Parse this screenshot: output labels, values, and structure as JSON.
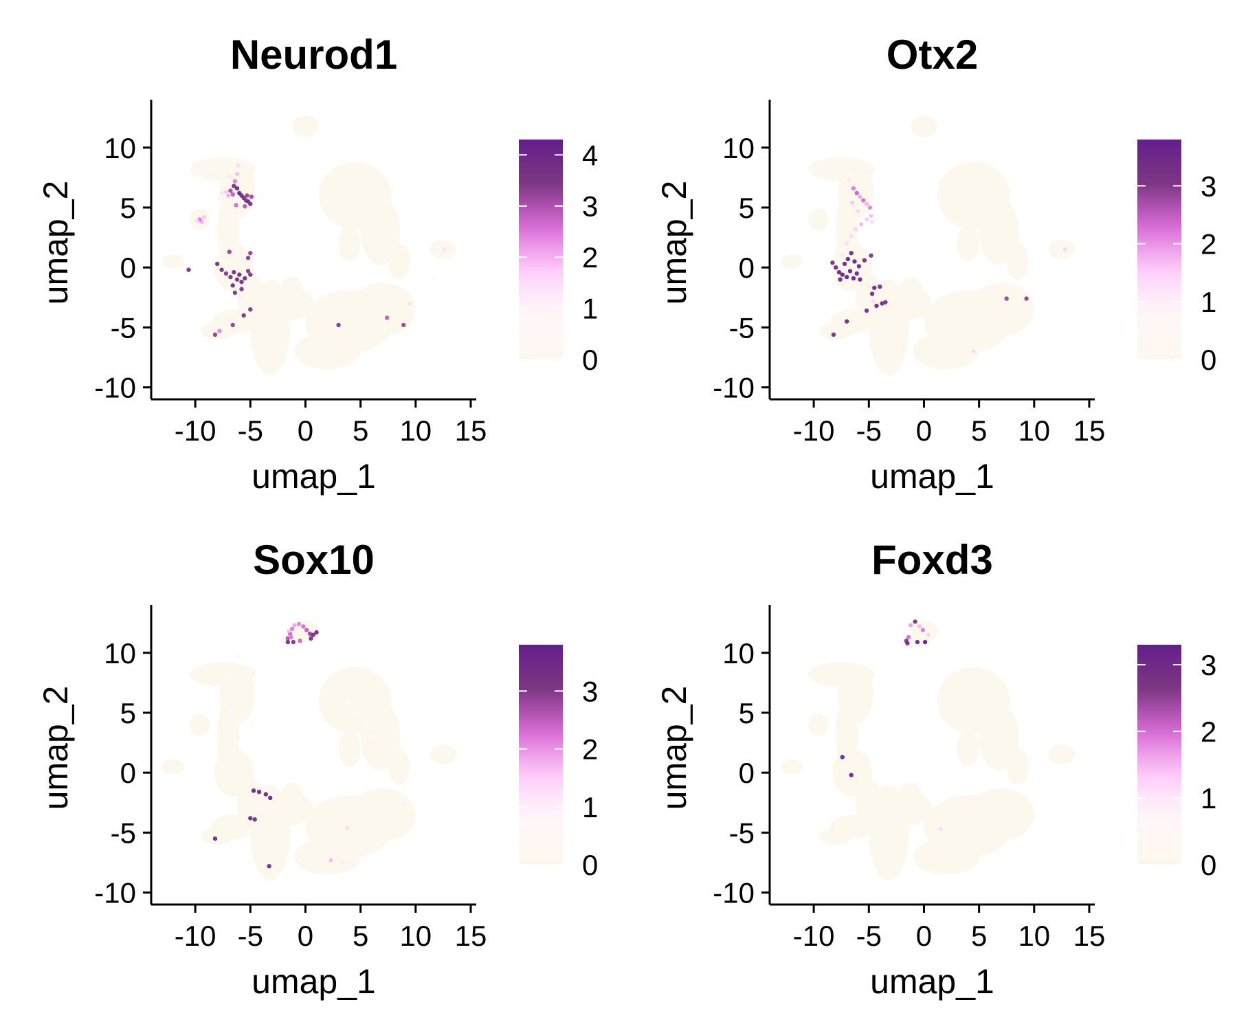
{
  "chart_data": [
    {
      "type": "scatter",
      "title": "Neurod1",
      "xlabel": "umap_1",
      "ylabel": "umap_2",
      "xlim": [
        -14,
        15.5
      ],
      "ylim": [
        -11,
        14
      ],
      "xticks": [
        -10,
        -5,
        0,
        5,
        10,
        15
      ],
      "yticks": [
        -10,
        -5,
        0,
        5,
        10
      ],
      "colorbar": {
        "min": 0,
        "max": 4.3,
        "ticks": [
          0,
          1,
          2,
          3,
          4
        ]
      },
      "points": [
        [
          -7,
          6,
          2.2
        ],
        [
          -6.8,
          6.4,
          3.0
        ],
        [
          -6.5,
          6.8,
          3.6
        ],
        [
          -6.2,
          6.6,
          3.8
        ],
        [
          -6,
          6.2,
          4.0
        ],
        [
          -5.8,
          6.0,
          3.9
        ],
        [
          -5.6,
          5.8,
          3.7
        ],
        [
          -5.4,
          5.6,
          3.5
        ],
        [
          -5.2,
          5.5,
          3.8
        ],
        [
          -5,
          5.3,
          3.6
        ],
        [
          -5.3,
          6.0,
          3.2
        ],
        [
          -6.6,
          6.1,
          2.8
        ],
        [
          -7.2,
          6.3,
          1.9
        ],
        [
          -7.6,
          6.2,
          1.5
        ],
        [
          -7.8,
          5.8,
          1.2
        ],
        [
          -6.4,
          7.2,
          2.4
        ],
        [
          -6.2,
          7.8,
          2.0
        ],
        [
          -6.1,
          8.5,
          1.7
        ],
        [
          -6.9,
          7.6,
          1.4
        ],
        [
          -7.4,
          8.8,
          0.9
        ],
        [
          -6.3,
          5.2,
          2.6
        ],
        [
          -5.5,
          5.1,
          2.9
        ],
        [
          -4.9,
          5.9,
          3.1
        ],
        [
          -9.6,
          4.0,
          2.5
        ],
        [
          -9.4,
          3.8,
          2.2
        ],
        [
          -9.2,
          4.2,
          2.0
        ],
        [
          -9.8,
          3.9,
          1.8
        ],
        [
          -8,
          0.3,
          3.5
        ],
        [
          -7.6,
          -0.2,
          3.6
        ],
        [
          -7.2,
          -0.5,
          3.4
        ],
        [
          -6.8,
          -0.8,
          3.6
        ],
        [
          -6.5,
          -0.4,
          3.7
        ],
        [
          -6.2,
          -1.0,
          3.5
        ],
        [
          -6,
          -0.6,
          3.8
        ],
        [
          -5.8,
          -1.2,
          3.6
        ],
        [
          -5.5,
          -0.9,
          3.7
        ],
        [
          -5.2,
          -0.3,
          3.4
        ],
        [
          -5,
          -0.6,
          3.5
        ],
        [
          -5.2,
          0.8,
          3.3
        ],
        [
          -5,
          1.2,
          3.2
        ],
        [
          -6.6,
          -1.5,
          3.6
        ],
        [
          -6.4,
          -2.1,
          3.4
        ],
        [
          -5.8,
          -1.8,
          3.5
        ],
        [
          -6.9,
          1.3,
          3.2
        ],
        [
          -10.6,
          -0.2,
          3.5
        ],
        [
          -5,
          -3.5,
          3.4
        ],
        [
          -5.6,
          -4.0,
          3.5
        ],
        [
          -6.6,
          -4.8,
          3.3
        ],
        [
          -8.2,
          -5.6,
          3.3
        ],
        [
          -7.8,
          -5.3,
          2.4
        ],
        [
          -7.0,
          -4.3,
          1.2
        ],
        [
          -6.0,
          -2.5,
          1.3
        ],
        [
          -8.0,
          3.0,
          0.8
        ],
        [
          -6.8,
          2.6,
          0.9
        ],
        [
          -8.6,
          8.2,
          0.7
        ],
        [
          3.0,
          -4.8,
          3.4
        ],
        [
          7.4,
          -4.2,
          2.8
        ],
        [
          8.9,
          -4.8,
          3.2
        ],
        [
          9.5,
          -3.0,
          1.5
        ],
        [
          1.0,
          -3.0,
          1.0
        ],
        [
          12.6,
          1.5,
          1.5
        ],
        [
          11.5,
          -1.0,
          0.8
        ]
      ]
    },
    {
      "type": "scatter",
      "title": "Otx2",
      "xlabel": "umap_1",
      "ylabel": "umap_2",
      "xlim": [
        -14,
        15.5
      ],
      "ylim": [
        -11,
        14
      ],
      "xticks": [
        -10,
        -5,
        0,
        5,
        10,
        15
      ],
      "yticks": [
        -10,
        -5,
        0,
        5,
        10
      ],
      "colorbar": {
        "min": 0,
        "max": 3.8,
        "ticks": [
          0,
          1,
          2,
          3
        ]
      },
      "points": [
        [
          -6.4,
          6.6,
          2.2
        ],
        [
          -6.1,
          6.2,
          2.4
        ],
        [
          -5.8,
          5.9,
          2.0
        ],
        [
          -5.5,
          5.6,
          2.3
        ],
        [
          -5.2,
          5.3,
          1.9
        ],
        [
          -4.9,
          5.0,
          2.1
        ],
        [
          -4.8,
          4.3,
          1.8
        ],
        [
          -5.2,
          4.0,
          1.7
        ],
        [
          -5.7,
          3.6,
          1.9
        ],
        [
          -6.2,
          3.2,
          1.6
        ],
        [
          -6.6,
          2.6,
          1.5
        ],
        [
          -7.0,
          2.0,
          1.4
        ],
        [
          -6.5,
          5.4,
          1.7
        ],
        [
          -6.0,
          4.7,
          1.6
        ],
        [
          -4.7,
          3.8,
          1.5
        ],
        [
          -6.8,
          7.3,
          1.2
        ],
        [
          -6.4,
          8.2,
          1.0
        ],
        [
          -7.5,
          6.2,
          0.9
        ],
        [
          -7.8,
          3.2,
          0.8
        ],
        [
          -8.0,
          1.2,
          1.0
        ],
        [
          -7.4,
          1.0,
          1.3
        ],
        [
          -8.3,
          0.4,
          3.2
        ],
        [
          -8.0,
          0.0,
          3.5
        ],
        [
          -7.7,
          -0.4,
          3.6
        ],
        [
          -7.4,
          -0.6,
          3.7
        ],
        [
          -7.0,
          -0.8,
          3.5
        ],
        [
          -6.7,
          -0.3,
          3.6
        ],
        [
          -6.4,
          -0.9,
          3.7
        ],
        [
          -6.1,
          -0.5,
          3.5
        ],
        [
          -5.8,
          -1.0,
          3.4
        ],
        [
          -7.2,
          0.3,
          3.6
        ],
        [
          -6.9,
          0.7,
          3.5
        ],
        [
          -6.6,
          1.2,
          3.3
        ],
        [
          -6.3,
          0.5,
          3.6
        ],
        [
          -7.6,
          -1.0,
          3.4
        ],
        [
          -5.9,
          0.1,
          3.5
        ],
        [
          -5.4,
          0.6,
          3.2
        ],
        [
          -4.8,
          1.0,
          3.0
        ],
        [
          -4.5,
          -1.7,
          3.4
        ],
        [
          -4.7,
          -2.2,
          3.3
        ],
        [
          -4.0,
          -1.6,
          3.2
        ],
        [
          -4.3,
          -3.2,
          3.4
        ],
        [
          -3.8,
          -3.0,
          3.3
        ],
        [
          -3.5,
          -2.9,
          3.2
        ],
        [
          -5.2,
          -3.6,
          3.3
        ],
        [
          -7.0,
          -4.5,
          3.4
        ],
        [
          -8.2,
          -5.6,
          3.3
        ],
        [
          -4.6,
          -2.8,
          1.5
        ],
        [
          -5.0,
          -1.6,
          1.2
        ],
        [
          4.5,
          -7.0,
          1.5
        ],
        [
          7.5,
          -2.6,
          2.8
        ],
        [
          9.3,
          -2.6,
          2.9
        ],
        [
          12.8,
          1.5,
          1.6
        ],
        [
          4.5,
          4.3,
          0.8
        ],
        [
          6.0,
          2.2,
          0.9
        ],
        [
          1.0,
          -3.4,
          0.9
        ]
      ]
    },
    {
      "type": "scatter",
      "title": "Sox10",
      "xlabel": "umap_1",
      "ylabel": "umap_2",
      "xlim": [
        -14,
        15.5
      ],
      "ylim": [
        -11,
        14
      ],
      "xticks": [
        -10,
        -5,
        0,
        5,
        10,
        15
      ],
      "yticks": [
        -10,
        -5,
        0,
        5,
        10
      ],
      "colorbar": {
        "min": 0,
        "max": 3.8,
        "ticks": [
          0,
          1,
          2,
          3
        ]
      },
      "points": [
        [
          -1.6,
          11.2,
          2.6
        ],
        [
          -1.4,
          11.6,
          2.4
        ],
        [
          -1.2,
          12.0,
          2.2
        ],
        [
          -1.0,
          12.3,
          2.0
        ],
        [
          -0.6,
          12.4,
          2.1
        ],
        [
          -0.2,
          12.2,
          2.3
        ],
        [
          0.1,
          11.9,
          2.5
        ],
        [
          0.4,
          11.6,
          2.8
        ],
        [
          0.7,
          11.5,
          3.3
        ],
        [
          1.0,
          11.7,
          3.4
        ],
        [
          0.5,
          11.2,
          3.2
        ],
        [
          -0.5,
          11.0,
          2.4
        ],
        [
          -1.1,
          10.9,
          3.0
        ],
        [
          -1.6,
          10.9,
          3.2
        ],
        [
          -1.3,
          11.3,
          2.2
        ],
        [
          -1.5,
          11.8,
          1.8
        ],
        [
          -5.5,
          1.0,
          0.8
        ],
        [
          -6.0,
          3.0,
          0.8
        ],
        [
          -7.0,
          8.0,
          0.7
        ],
        [
          -6.2,
          9.8,
          0.8
        ],
        [
          -6.8,
          5.0,
          0.7
        ],
        [
          -4.8,
          4.0,
          0.8
        ],
        [
          -7.6,
          0.6,
          0.8
        ],
        [
          -12.3,
          0.2,
          0.9
        ],
        [
          -4.7,
          -1.5,
          3.5
        ],
        [
          -4.2,
          -1.6,
          3.4
        ],
        [
          -3.6,
          -1.8,
          3.5
        ],
        [
          -3.2,
          -2.1,
          3.5
        ],
        [
          -5.0,
          -3.8,
          3.4
        ],
        [
          -4.6,
          -3.9,
          3.3
        ],
        [
          -3.3,
          -7.8,
          3.3
        ],
        [
          -8.2,
          -5.5,
          3.4
        ],
        [
          3.8,
          -4.6,
          1.5
        ],
        [
          2.3,
          -7.3,
          1.8
        ],
        [
          3.4,
          -7.5,
          1.2
        ],
        [
          9.0,
          -2.6,
          1.1
        ],
        [
          3.0,
          6.0,
          0.9
        ],
        [
          4.5,
          5.0,
          0.7
        ],
        [
          5.5,
          4.0,
          0.8
        ],
        [
          6.5,
          5.5,
          0.8
        ],
        [
          7.0,
          7.5,
          0.7
        ],
        [
          6.0,
          3.0,
          0.8
        ],
        [
          4.8,
          2.5,
          0.7
        ],
        [
          3.5,
          3.2,
          0.7
        ],
        [
          5.2,
          6.5,
          0.8
        ],
        [
          6.8,
          2.0,
          0.7
        ],
        [
          5.6,
          1.5,
          0.7
        ],
        [
          4.2,
          3.8,
          0.7
        ],
        [
          7.2,
          4.5,
          0.8
        ],
        [
          3.8,
          5.8,
          0.7
        ]
      ]
    },
    {
      "type": "scatter",
      "title": "Foxd3",
      "xlabel": "umap_1",
      "ylabel": "umap_2",
      "xlim": [
        -14,
        15.5
      ],
      "ylim": [
        -11,
        14
      ],
      "xticks": [
        -10,
        -5,
        0,
        5,
        10,
        15
      ],
      "yticks": [
        -10,
        -5,
        0,
        5,
        10
      ],
      "colorbar": {
        "min": 0,
        "max": 3.3,
        "ticks": [
          0,
          1,
          2,
          3
        ]
      },
      "points": [
        [
          -1.6,
          11.0,
          2.6
        ],
        [
          -1.4,
          11.3,
          2.0
        ],
        [
          -1.2,
          12.3,
          1.8
        ],
        [
          -0.8,
          12.6,
          2.8
        ],
        [
          -0.4,
          12.2,
          1.6
        ],
        [
          -0.1,
          11.9,
          1.9
        ],
        [
          -0.6,
          10.9,
          3.0
        ],
        [
          0.1,
          10.9,
          3.2
        ],
        [
          -1.5,
          10.8,
          2.9
        ],
        [
          0.4,
          11.5,
          1.4
        ],
        [
          -7.4,
          1.3,
          3.0
        ],
        [
          -6.6,
          -0.2,
          3.1
        ],
        [
          -7.8,
          6.0,
          0.7
        ],
        [
          1.5,
          -4.7,
          1.3
        ]
      ]
    }
  ]
}
